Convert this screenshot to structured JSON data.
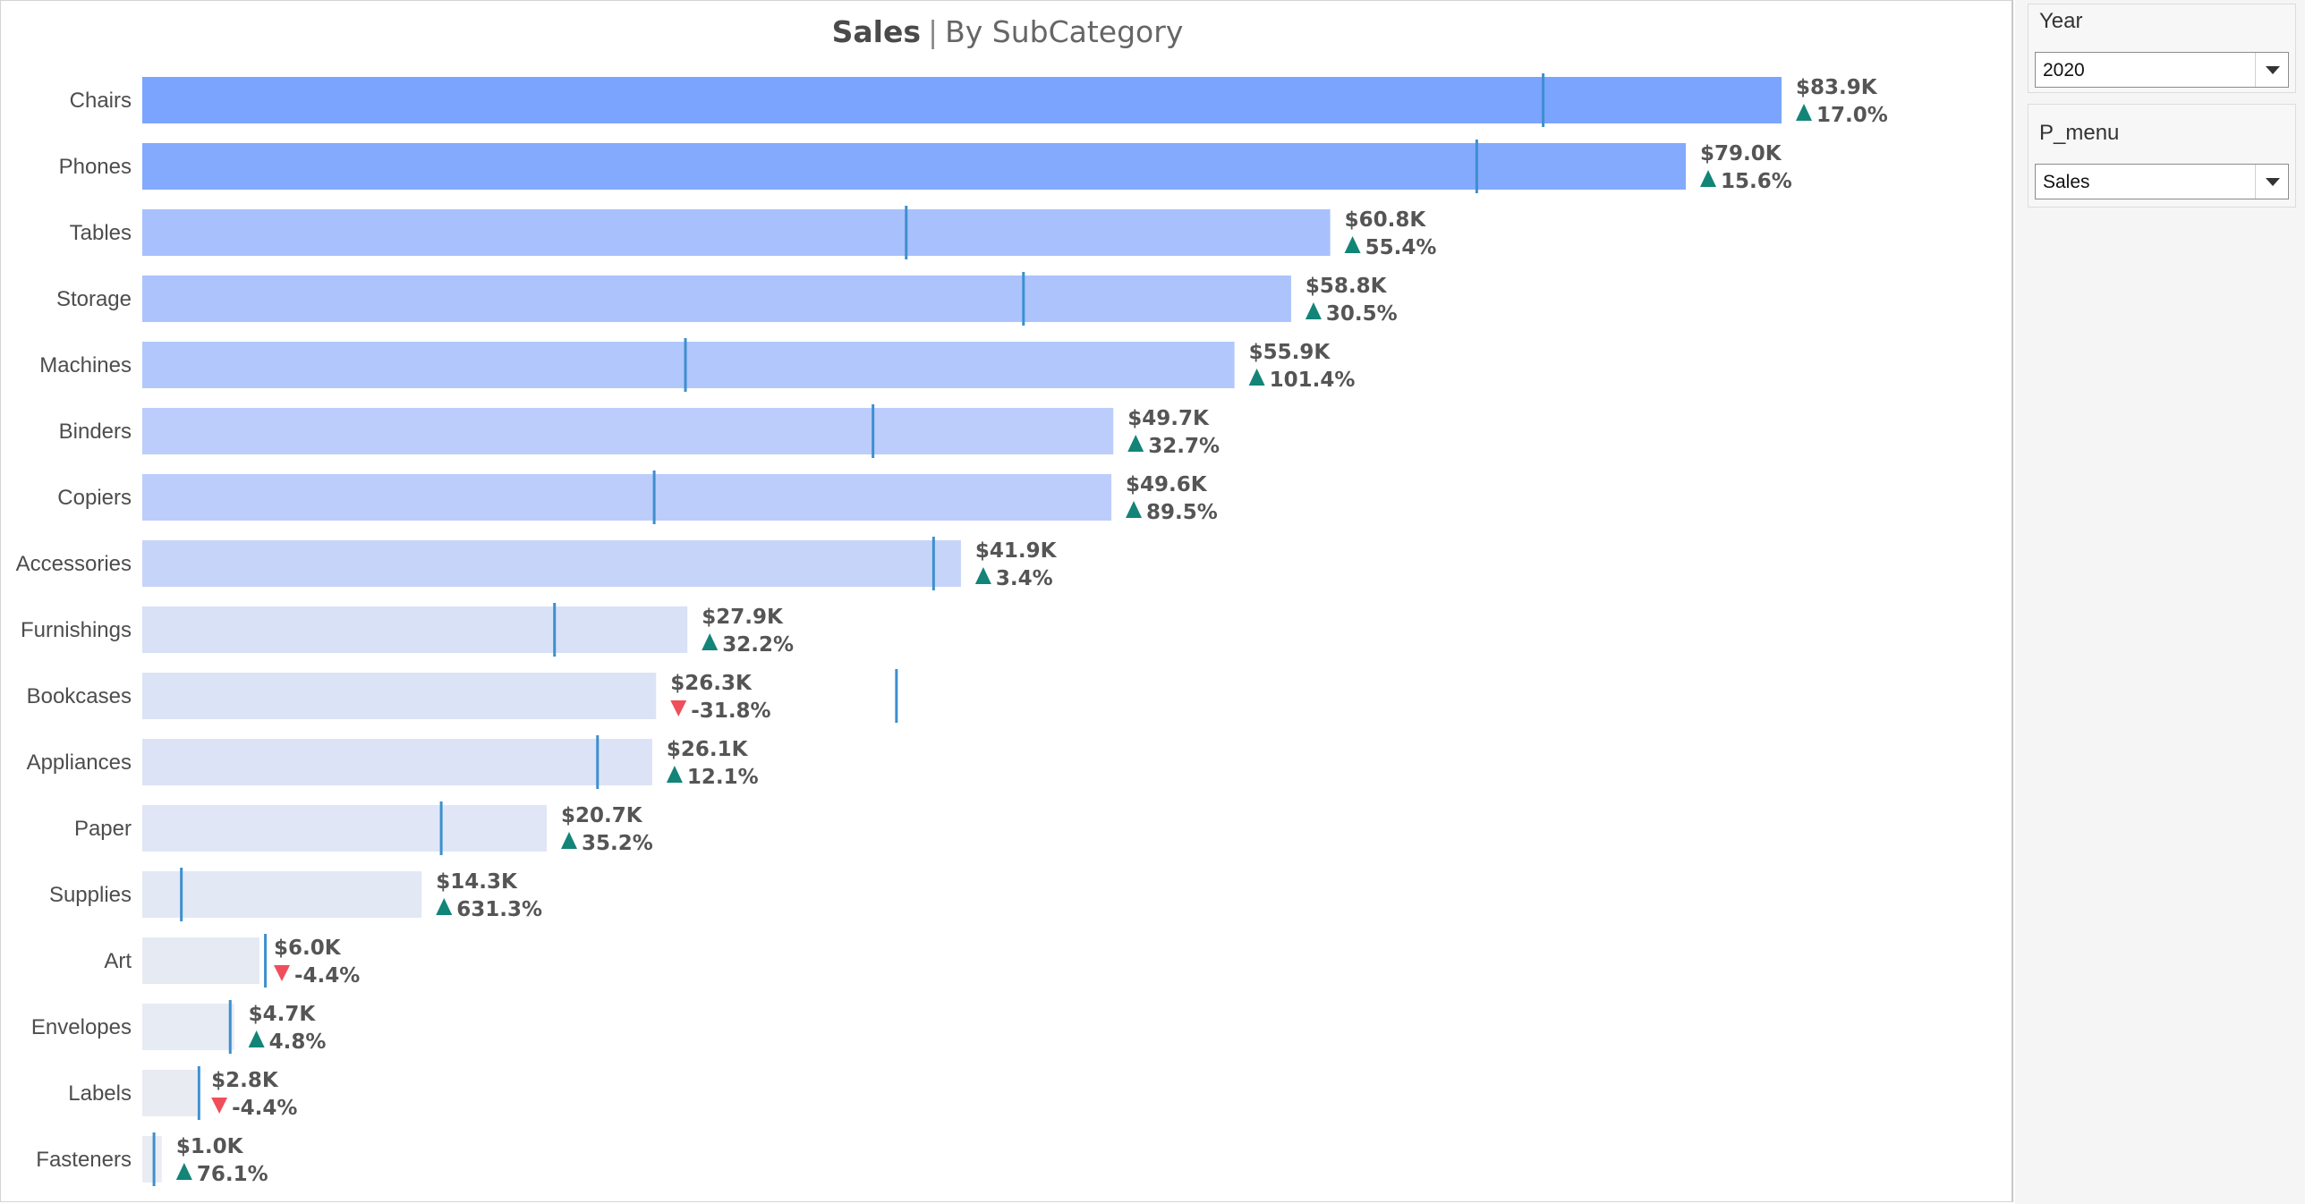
{
  "title": {
    "main": "Sales",
    "separator": "|",
    "sub": "By SubCategory"
  },
  "filters": {
    "year": {
      "label": "Year",
      "value": "2020"
    },
    "menu": {
      "label": "P_menu",
      "value": "Sales"
    }
  },
  "colors": {
    "bar_scale": [
      "#e9ecf2",
      "#dfe5f6",
      "#b9cbfb",
      "#7ba4ff"
    ],
    "reference_line": "#3d8fcf",
    "increase": "#128478",
    "decrease": "#ef4e5a"
  },
  "chart_data": {
    "type": "bar",
    "orientation": "horizontal",
    "categories": [
      "Chairs",
      "Phones",
      "Tables",
      "Storage",
      "Machines",
      "Binders",
      "Copiers",
      "Accessories",
      "Furnishings",
      "Bookcases",
      "Appliances",
      "Paper",
      "Supplies",
      "Art",
      "Envelopes",
      "Labels",
      "Fasteners"
    ],
    "series": [
      {
        "values": [
          83.9,
          79.0,
          60.8,
          58.8,
          55.9,
          49.7,
          49.6,
          41.9,
          27.9,
          26.3,
          26.1,
          20.7,
          14.3,
          6.0,
          4.7,
          2.8,
          1.0
        ]
      },
      {
        "values": [
          71.7,
          68.3,
          39.1,
          45.1,
          27.8,
          37.4,
          26.2,
          40.5,
          21.1,
          38.6,
          23.3,
          15.3,
          2.0,
          6.3,
          4.5,
          2.9,
          0.6
        ]
      }
    ],
    "value_labels": [
      "$83.9K",
      "$79.0K",
      "$60.8K",
      "$58.8K",
      "$55.9K",
      "$49.7K",
      "$49.6K",
      "$41.9K",
      "$27.9K",
      "$26.3K",
      "$26.1K",
      "$20.7K",
      "$14.3K",
      "$6.0K",
      "$4.7K",
      "$2.8K",
      "$1.0K"
    ],
    "change_labels": [
      "17.0%",
      "15.6%",
      "55.4%",
      "30.5%",
      "101.4%",
      "32.7%",
      "89.5%",
      "3.4%",
      "32.2%",
      "-31.8%",
      "12.1%",
      "35.2%",
      "631.3%",
      "-4.4%",
      "4.8%",
      "-4.4%",
      "76.1%"
    ],
    "change_direction": [
      "up",
      "up",
      "up",
      "up",
      "up",
      "up",
      "up",
      "up",
      "up",
      "down",
      "up",
      "up",
      "up",
      "down",
      "up",
      "down",
      "up"
    ],
    "xlim": [
      0,
      83.9
    ],
    "xlabel": "",
    "ylabel": "",
    "grid": false,
    "legend": "none"
  }
}
